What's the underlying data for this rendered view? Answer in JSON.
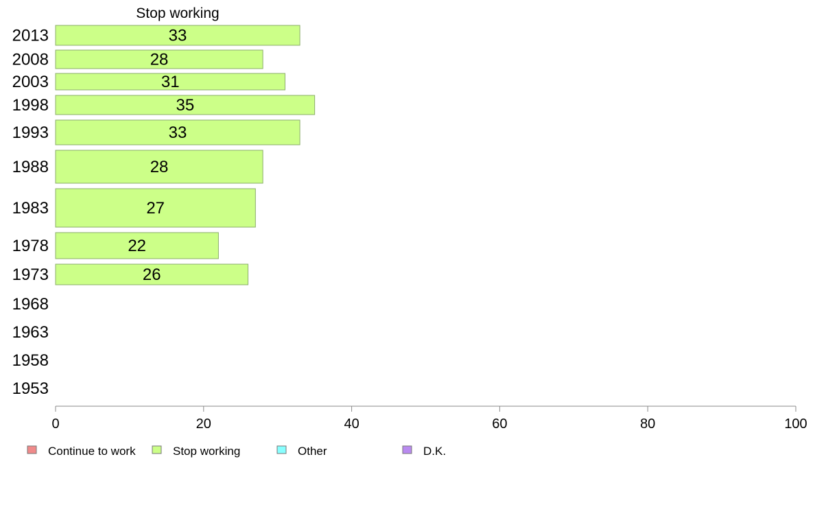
{
  "chart_data": {
    "type": "bar",
    "orientation": "horizontal",
    "title": "Stop working",
    "categories": [
      "2013",
      "2008",
      "2003",
      "1998",
      "1993",
      "1988",
      "1983",
      "1978",
      "1973",
      "1968",
      "1963",
      "1958",
      "1953"
    ],
    "series": [
      {
        "name": "Stop working",
        "color": "#ccff88",
        "values": [
          33,
          28,
          31,
          35,
          33,
          28,
          27,
          22,
          26,
          null,
          null,
          null,
          null
        ],
        "labels": [
          "33",
          "28",
          "31",
          "35",
          "33",
          "28",
          "27",
          "22",
          "26",
          "",
          "",
          "",
          ""
        ]
      }
    ],
    "xlim": [
      0,
      100
    ],
    "xticks": [
      "0",
      "20",
      "40",
      "60",
      "80",
      "100"
    ],
    "grid": false,
    "legend": {
      "placement": "bottom",
      "items": [
        {
          "label": "Continue to work",
          "color": "#f08a8a"
        },
        {
          "label": "Stop working",
          "color": "#ccff88"
        },
        {
          "label": "Other",
          "color": "#88ffff"
        },
        {
          "label": "D.K.",
          "color": "#b98af0"
        }
      ]
    }
  }
}
